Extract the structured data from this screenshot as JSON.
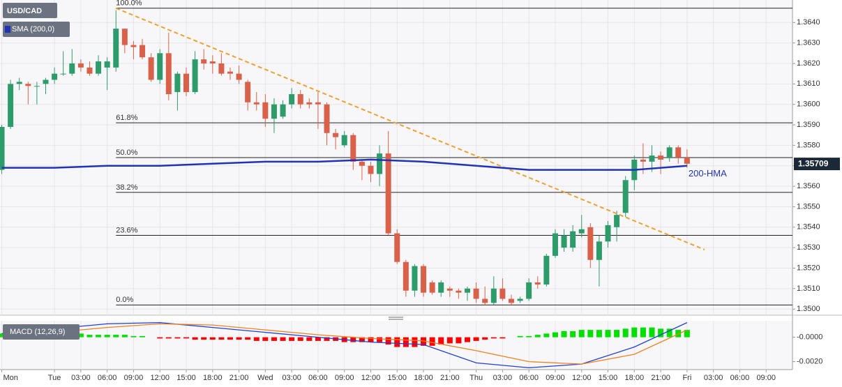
{
  "chart_data": [
    {
      "type": "candlestick",
      "title": "USD/CAD",
      "xlim": [
        -0.2,
        90
      ],
      "ylim": [
        1.3497,
        1.3651
      ],
      "grid": true,
      "xticks": [
        {
          "value": 0,
          "label": "Mon"
        },
        {
          "value": 6,
          "label": "Tue"
        },
        {
          "value": 9,
          "label": "03:00"
        },
        {
          "value": 12,
          "label": "06:00"
        },
        {
          "value": 15,
          "label": "09:00"
        },
        {
          "value": 18,
          "label": "12:00"
        },
        {
          "value": 21,
          "label": "15:00"
        },
        {
          "value": 24,
          "label": "18:00"
        },
        {
          "value": 27,
          "label": "21:00"
        },
        {
          "value": 30,
          "label": "Wed"
        },
        {
          "value": 33,
          "label": "03:00"
        },
        {
          "value": 36,
          "label": "06:00"
        },
        {
          "value": 39,
          "label": "09:00"
        },
        {
          "value": 42,
          "label": "12:00"
        },
        {
          "value": 45,
          "label": "15:00"
        },
        {
          "value": 48,
          "label": "18:00"
        },
        {
          "value": 51,
          "label": "21:00"
        },
        {
          "value": 54,
          "label": "Thu"
        },
        {
          "value": 57,
          "label": "03:00"
        },
        {
          "value": 60,
          "label": "06:00"
        },
        {
          "value": 63,
          "label": "09:00"
        },
        {
          "value": 66,
          "label": "12:00"
        },
        {
          "value": 69,
          "label": "15:00"
        },
        {
          "value": 72,
          "label": "18:00"
        },
        {
          "value": 75,
          "label": "21:00"
        },
        {
          "value": 78,
          "label": "Fri"
        },
        {
          "value": 81,
          "label": "03:00"
        },
        {
          "value": 84,
          "label": "06:00"
        },
        {
          "value": 87,
          "label": "09:00"
        }
      ],
      "yticks": [
        {
          "value": 1.35,
          "label": "1.3500"
        },
        {
          "value": 1.351,
          "label": "1.3510"
        },
        {
          "value": 1.352,
          "label": "1.3520"
        },
        {
          "value": 1.353,
          "label": "1.3530"
        },
        {
          "value": 1.354,
          "label": "1.3540"
        },
        {
          "value": 1.355,
          "label": "1.3550"
        },
        {
          "value": 1.356,
          "label": "1.3560"
        },
        {
          "value": 1.357,
          "label": "1.3570"
        },
        {
          "value": 1.358,
          "label": "1.3580"
        },
        {
          "value": 1.359,
          "label": "1.3590"
        },
        {
          "value": 1.36,
          "label": "1.3600"
        },
        {
          "value": 1.361,
          "label": "1.3610"
        },
        {
          "value": 1.362,
          "label": "1.3620"
        },
        {
          "value": 1.363,
          "label": "1.3630"
        },
        {
          "value": 1.364,
          "label": "1.3640"
        }
      ],
      "up_color": "#2e9b6b",
      "down_color": "#d9614a",
      "open": [
        1.3568,
        1.3589,
        1.361,
        1.361,
        1.3609,
        1.361,
        1.3612,
        1.3615,
        1.3615,
        1.362,
        1.3618,
        1.3615,
        1.3618,
        1.3618,
        1.3637,
        1.3629,
        1.3629,
        1.3623,
        1.3612,
        1.3625,
        1.3606,
        1.3615,
        1.3606,
        1.3622,
        1.3621,
        1.362,
        1.3616,
        1.3615,
        1.3611,
        1.3601,
        1.3601,
        1.3593,
        1.3594,
        1.36,
        1.3605,
        1.3601,
        1.3601,
        1.36,
        1.3586,
        1.358,
        1.3585,
        1.3572,
        1.357,
        1.3566,
        1.3576,
        1.3537,
        1.3523,
        1.3509,
        1.3521,
        1.3513,
        1.3508,
        1.351,
        1.3509,
        1.3508,
        1.351,
        1.3505,
        1.3503,
        1.351,
        1.3505,
        1.3504,
        1.3505,
        1.3513,
        1.3512,
        1.3526,
        1.353,
        1.353,
        1.3537,
        1.354,
        1.3524,
        1.3533,
        1.354,
        1.3547,
        1.3563,
        1.3573,
        1.3572,
        1.3575,
        1.3574,
        1.3579,
        1.3574
      ],
      "high": [
        1.359,
        1.3612,
        1.3613,
        1.3611,
        1.3611,
        1.3613,
        1.3618,
        1.3626,
        1.3627,
        1.3622,
        1.3621,
        1.3624,
        1.3623,
        1.3646,
        1.3637,
        1.3631,
        1.3632,
        1.3625,
        1.3627,
        1.3635,
        1.3616,
        1.3618,
        1.3626,
        1.3627,
        1.3624,
        1.3625,
        1.3618,
        1.3619,
        1.3612,
        1.3606,
        1.3605,
        1.3603,
        1.3602,
        1.3608,
        1.3607,
        1.3603,
        1.3606,
        1.3601,
        1.3588,
        1.3587,
        1.3586,
        1.3573,
        1.3572,
        1.358,
        1.3587,
        1.3539,
        1.3524,
        1.3522,
        1.3522,
        1.3514,
        1.3514,
        1.3511,
        1.351,
        1.3511,
        1.3513,
        1.3511,
        1.3516,
        1.3515,
        1.3507,
        1.3506,
        1.3515,
        1.3516,
        1.3527,
        1.3539,
        1.3539,
        1.3541,
        1.3546,
        1.3542,
        1.3536,
        1.3543,
        1.3548,
        1.3565,
        1.3575,
        1.3581,
        1.358,
        1.3577,
        1.358,
        1.358,
        1.3578
      ],
      "low": [
        1.3566,
        1.3588,
        1.3607,
        1.36,
        1.36,
        1.3605,
        1.361,
        1.3614,
        1.3614,
        1.3616,
        1.3614,
        1.3614,
        1.3607,
        1.3616,
        1.3625,
        1.3622,
        1.3622,
        1.3611,
        1.361,
        1.3602,
        1.3597,
        1.3604,
        1.3605,
        1.3617,
        1.3615,
        1.3614,
        1.3612,
        1.361,
        1.3597,
        1.3597,
        1.3589,
        1.3586,
        1.3593,
        1.3598,
        1.3598,
        1.3598,
        1.3588,
        1.358,
        1.3578,
        1.3579,
        1.3568,
        1.3563,
        1.3562,
        1.356,
        1.3536,
        1.3522,
        1.3506,
        1.3506,
        1.3506,
        1.3507,
        1.3506,
        1.3506,
        1.3505,
        1.3504,
        1.3503,
        1.3502,
        1.3502,
        1.3504,
        1.3502,
        1.3503,
        1.3504,
        1.351,
        1.3511,
        1.3525,
        1.3528,
        1.3528,
        1.3535,
        1.352,
        1.3511,
        1.353,
        1.3533,
        1.3545,
        1.3558,
        1.3566,
        1.3567,
        1.3566,
        1.3572,
        1.3571,
        1.3569
      ],
      "close": [
        1.3589,
        1.361,
        1.3611,
        1.3609,
        1.3609,
        1.3612,
        1.3615,
        1.3615,
        1.362,
        1.3618,
        1.3615,
        1.3621,
        1.3621,
        1.3637,
        1.3629,
        1.3628,
        1.3623,
        1.3612,
        1.3625,
        1.3605,
        1.3615,
        1.3606,
        1.3622,
        1.362,
        1.362,
        1.3615,
        1.3615,
        1.3612,
        1.3601,
        1.36,
        1.3593,
        1.36,
        1.36,
        1.3605,
        1.36,
        1.36,
        1.36,
        1.3586,
        1.3584,
        1.3585,
        1.3572,
        1.357,
        1.3566,
        1.3576,
        1.3537,
        1.3523,
        1.3509,
        1.3521,
        1.3508,
        1.3508,
        1.3513,
        1.3509,
        1.3508,
        1.351,
        1.3505,
        1.3503,
        1.351,
        1.3505,
        1.3503,
        1.3505,
        1.3513,
        1.3512,
        1.3526,
        1.3537,
        1.3536,
        1.3538,
        1.3539,
        1.3524,
        1.3533,
        1.3541,
        1.3546,
        1.3563,
        1.3573,
        1.3572,
        1.3575,
        1.3573,
        1.3579,
        1.3574,
        1.3571
      ],
      "series": [
        {
          "name": "SMA (200,0)",
          "color": "#1f33b8",
          "x": [
            0,
            6,
            12,
            18,
            24,
            30,
            36,
            42,
            48,
            54,
            60,
            66,
            72,
            78
          ],
          "values": [
            1.3569,
            1.3569,
            1.357,
            1.357,
            1.3571,
            1.3572,
            1.3572,
            1.3573,
            1.3572,
            1.357,
            1.3568,
            1.3568,
            1.3568,
            1.357
          ]
        }
      ],
      "ma_label": "200-HMA",
      "trendline": {
        "color": "#f0a030",
        "x": [
          13,
          80
        ],
        "values": [
          1.3647,
          1.3529
        ]
      },
      "fib_levels": [
        {
          "label": "100.0%",
          "value": 1.3647
        },
        {
          "label": "61.8%",
          "value": 1.3591
        },
        {
          "label": "50.0%",
          "value": 1.3574
        },
        {
          "label": "38.2%",
          "value": 1.3557
        },
        {
          "label": "23.6%",
          "value": 1.3536
        },
        {
          "label": "0.0%",
          "value": 1.3502
        }
      ],
      "last_price": 1.35709
    },
    {
      "type": "macd",
      "title": "MACD (12,26,9)",
      "ylim": [
        -0.00265,
        0.00135
      ],
      "yticks": [
        {
          "value": 0,
          "label": "-0.0000"
        },
        {
          "value": -0.002,
          "label": "-0.0020"
        }
      ],
      "up_color": "#00e000",
      "down_color": "#ff0000",
      "histogram": [
        0.0003,
        0.0003,
        0.0003,
        0.0003,
        0.0003,
        0.0003,
        0.0003,
        0.0003,
        0.0003,
        0.0003,
        0.0002,
        0.0002,
        0.0002,
        0.0002,
        0.0002,
        0.0001,
        0.0001,
        0.0,
        -0.0001,
        -0.0001,
        -0.0001,
        -0.0001,
        -0.0002,
        -0.0002,
        -0.0002,
        -0.0002,
        -0.0002,
        -0.0002,
        -0.0002,
        -0.0003,
        -0.0003,
        -0.0003,
        -0.0003,
        -0.0003,
        -0.0003,
        -0.0003,
        -0.0003,
        -0.0003,
        -0.0003,
        -0.0004,
        -0.0004,
        -0.0004,
        -0.0004,
        -0.0004,
        -0.0006,
        -0.0008,
        -0.0008,
        -0.0008,
        -0.0007,
        -0.0007,
        -0.0006,
        -0.0005,
        -0.0005,
        -0.0004,
        -0.0003,
        -0.0002,
        -0.0001,
        -0.0001,
        0.0,
        0.0001,
        0.0001,
        0.0002,
        0.0003,
        0.0004,
        0.0005,
        0.0005,
        0.0006,
        0.0006,
        0.0006,
        0.0006,
        0.0006,
        0.0007,
        0.0008,
        0.0008,
        0.0008,
        0.0007,
        0.0007,
        0.0006,
        0.0006
      ],
      "series": [
        {
          "color": "#2040d0",
          "x": [
            0,
            6,
            12,
            18,
            24,
            30,
            36,
            42,
            48,
            54,
            60,
            66,
            72,
            78
          ],
          "values": [
            0.0003,
            0.0007,
            0.0011,
            0.0012,
            0.0008,
            0.0004,
            0.0,
            -0.0004,
            -0.0006,
            -0.0021,
            -0.0025,
            -0.0022,
            -0.0008,
            0.0012
          ]
        },
        {
          "color": "#f08020",
          "x": [
            0,
            6,
            12,
            18,
            24,
            30,
            36,
            42,
            48,
            54,
            60,
            66,
            72,
            78
          ],
          "values": [
            0.0,
            0.0004,
            0.0008,
            0.0011,
            0.001,
            0.0006,
            0.0002,
            -0.0001,
            -0.0003,
            -0.0011,
            -0.002,
            -0.0022,
            -0.0014,
            0.0006
          ]
        }
      ]
    }
  ]
}
